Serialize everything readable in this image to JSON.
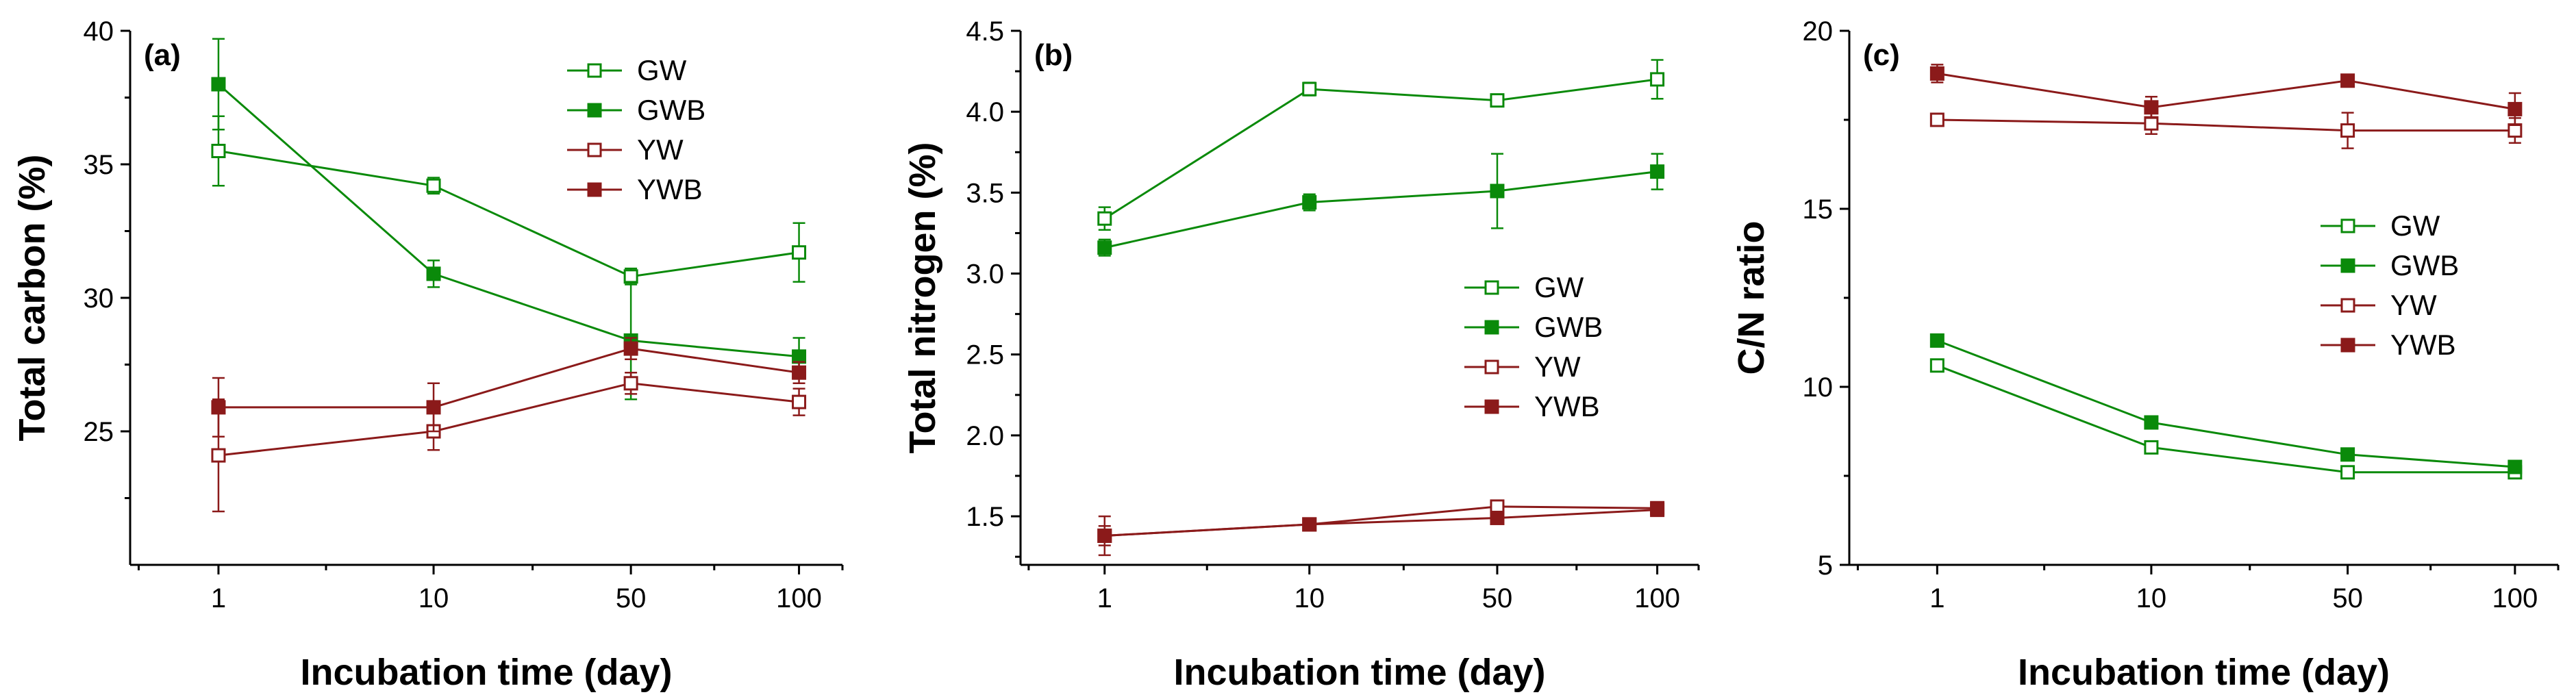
{
  "colors": {
    "green": "#0a8a0a",
    "red": "#8b1a1a",
    "axis": "#000000"
  },
  "chart_data": [
    {
      "type": "line",
      "panel": "(a)",
      "xlabel": "Incubation time (day)",
      "ylabel": "Total carbon (%)",
      "categories": [
        "1",
        "10",
        "50",
        "100"
      ],
      "ylim": [
        20,
        40
      ],
      "yticks": [
        25,
        30,
        35,
        40
      ],
      "ytick_labels": [
        "25",
        "30",
        "35",
        "40"
      ],
      "legend_position": "top-right",
      "series": [
        {
          "name": "GW",
          "color": "green",
          "filled": false,
          "values": [
            35.5,
            34.2,
            30.8,
            31.7
          ],
          "errors": [
            1.3,
            0.3,
            0.3,
            1.1
          ]
        },
        {
          "name": "GWB",
          "color": "green",
          "filled": true,
          "values": [
            38.0,
            30.9,
            28.4,
            27.8
          ],
          "errors": [
            1.7,
            0.5,
            2.2,
            0.7
          ]
        },
        {
          "name": "YW",
          "color": "red",
          "filled": false,
          "values": [
            24.1,
            25.0,
            26.8,
            26.1
          ],
          "errors": [
            2.1,
            0.7,
            0.4,
            0.5
          ]
        },
        {
          "name": "YWB",
          "color": "red",
          "filled": true,
          "values": [
            25.9,
            25.9,
            28.1,
            27.2
          ],
          "errors": [
            1.1,
            0.9,
            0.4,
            0.4
          ]
        }
      ]
    },
    {
      "type": "line",
      "panel": "(b)",
      "xlabel": "Incubation time (day)",
      "ylabel": "Total nitrogen (%)",
      "categories": [
        "1",
        "10",
        "50",
        "100"
      ],
      "ylim": [
        1.2,
        4.5
      ],
      "yticks": [
        1.5,
        2.0,
        2.5,
        3.0,
        3.5,
        4.0,
        4.5
      ],
      "ytick_labels": [
        "1.5",
        "2.0",
        "2.5",
        "3.0",
        "3.5",
        "4.0",
        "4.5"
      ],
      "legend_position": "middle-right",
      "series": [
        {
          "name": "GW",
          "color": "green",
          "filled": false,
          "values": [
            3.34,
            4.14,
            4.07,
            4.2
          ],
          "errors": [
            0.07,
            0.04,
            0.02,
            0.12
          ]
        },
        {
          "name": "GWB",
          "color": "green",
          "filled": true,
          "values": [
            3.16,
            3.44,
            3.51,
            3.63
          ],
          "errors": [
            0.05,
            0.05,
            0.23,
            0.11
          ]
        },
        {
          "name": "YW",
          "color": "red",
          "filled": false,
          "values": [
            1.38,
            1.45,
            1.56,
            1.55
          ],
          "errors": [
            0.12,
            0.02,
            0.03,
            0.02
          ]
        },
        {
          "name": "YWB",
          "color": "red",
          "filled": true,
          "values": [
            1.38,
            1.45,
            1.49,
            1.54
          ],
          "errors": [
            0.06,
            0.02,
            0.02,
            0.02
          ]
        }
      ]
    },
    {
      "type": "line",
      "panel": "(c)",
      "xlabel": "Incubation time (day)",
      "ylabel": "C/N ratio",
      "categories": [
        "1",
        "10",
        "50",
        "100"
      ],
      "ylim": [
        5,
        20
      ],
      "yticks": [
        5,
        10,
        15,
        20
      ],
      "ytick_labels": [
        "5",
        "10",
        "15",
        "20"
      ],
      "legend_position": "middle-right",
      "series": [
        {
          "name": "GW",
          "color": "green",
          "filled": false,
          "values": [
            10.6,
            8.3,
            7.6,
            7.6
          ],
          "errors": [
            0.15,
            0.1,
            0.1,
            0.1
          ]
        },
        {
          "name": "GWB",
          "color": "green",
          "filled": true,
          "values": [
            11.3,
            9.0,
            8.1,
            7.75
          ],
          "errors": [
            0.15,
            0.1,
            0.1,
            0.1
          ]
        },
        {
          "name": "YW",
          "color": "red",
          "filled": false,
          "values": [
            17.5,
            17.4,
            17.2,
            17.2
          ],
          "errors": [
            0.1,
            0.3,
            0.5,
            0.35
          ]
        },
        {
          "name": "YWB",
          "color": "red",
          "filled": true,
          "values": [
            18.8,
            17.85,
            18.6,
            17.8
          ],
          "errors": [
            0.25,
            0.3,
            0.1,
            0.45
          ]
        }
      ]
    }
  ]
}
